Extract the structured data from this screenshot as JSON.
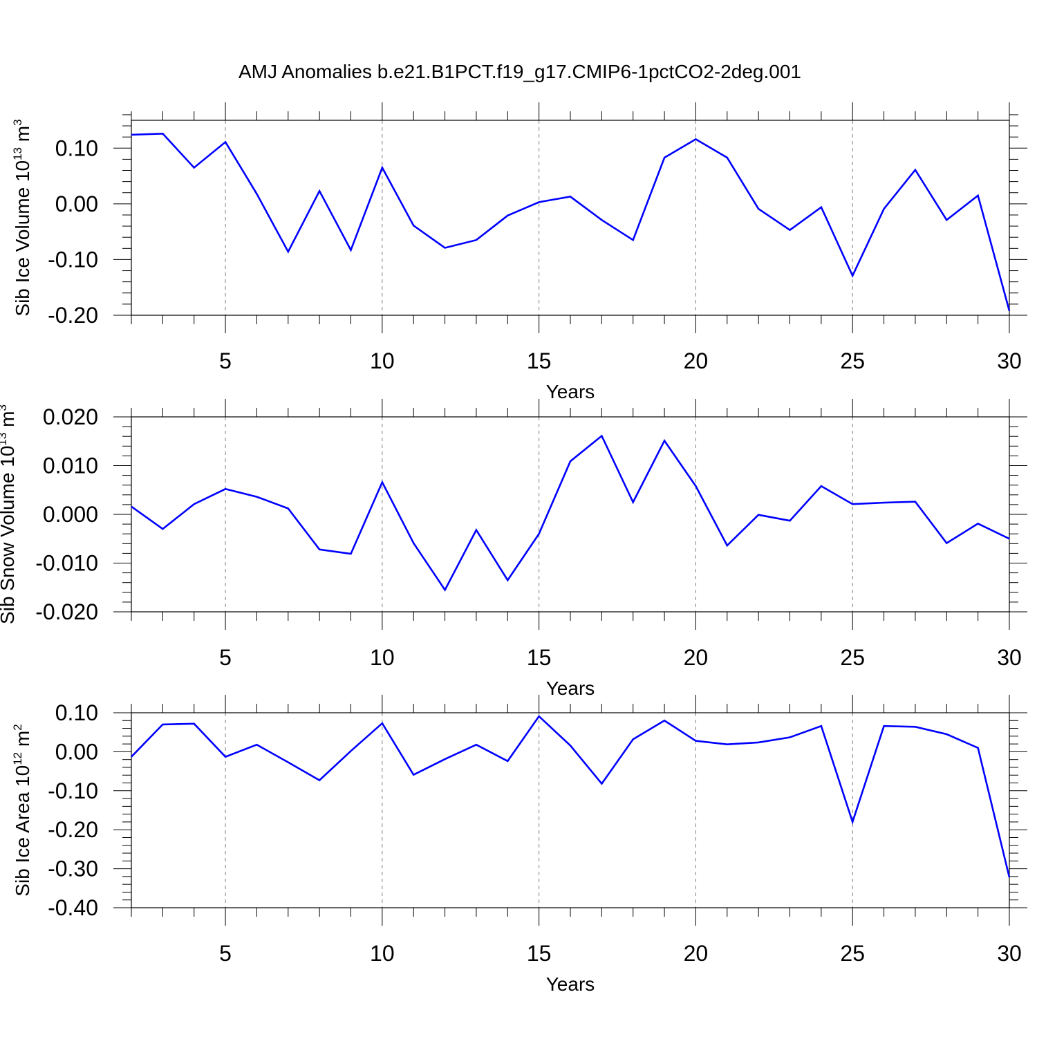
{
  "title": "AMJ Anomalies b.e21.B1PCT.f19_g17.CMIP6-1pctCO2-2deg.001",
  "colors": {
    "line": "#0000ff",
    "axis": "#000000",
    "grid": "#7f7f7f",
    "background": "#ffffff"
  },
  "chart_data": [
    {
      "type": "line",
      "ylabel": "Sib Ice Volume 10",
      "ylabel_exp": "13",
      "ylabel_unit": " m",
      "ylabel_unit_exp": "3",
      "xlabel": "Years",
      "xlim": [
        2,
        30
      ],
      "ylim": [
        -0.2,
        0.15
      ],
      "x_ticks": [
        5,
        10,
        15,
        20,
        25,
        30
      ],
      "x_tick_labels": [
        "5",
        "10",
        "15",
        "20",
        "25",
        "30"
      ],
      "y_ticks": [
        -0.2,
        -0.1,
        0.0,
        0.1
      ],
      "y_tick_labels": [
        "-0.20",
        "-0.10",
        "0.00",
        "0.10"
      ],
      "grid": "vertical dashed at x ticks",
      "x": [
        2,
        3,
        4,
        5,
        6,
        7,
        8,
        9,
        10,
        11,
        12,
        13,
        14,
        15,
        16,
        17,
        18,
        19,
        20,
        21,
        22,
        23,
        24,
        25,
        26,
        27,
        28,
        29,
        30
      ],
      "series": [
        {
          "values": [
            0.124,
            0.126,
            0.065,
            0.111,
            0.018,
            -0.086,
            0.023,
            -0.083,
            0.065,
            -0.039,
            -0.079,
            -0.065,
            -0.021,
            0.003,
            0.013,
            -0.029,
            -0.065,
            0.083,
            0.116,
            0.083,
            -0.009,
            -0.047,
            -0.006,
            -0.129,
            -0.009,
            0.061,
            -0.029,
            0.015,
            -0.192
          ]
        }
      ]
    },
    {
      "type": "line",
      "ylabel": "Sib Snow Volume 10",
      "ylabel_exp": "13",
      "ylabel_unit": " m",
      "ylabel_unit_exp": "3",
      "xlabel": "Years",
      "xlim": [
        2,
        30
      ],
      "ylim": [
        -0.02,
        0.02
      ],
      "x_ticks": [
        5,
        10,
        15,
        20,
        25,
        30
      ],
      "x_tick_labels": [
        "5",
        "10",
        "15",
        "20",
        "25",
        "30"
      ],
      "y_ticks": [
        -0.02,
        -0.01,
        0.0,
        0.01,
        0.02
      ],
      "y_tick_labels": [
        "-0.020",
        "-0.010",
        "0.000",
        "0.010",
        "0.020"
      ],
      "grid": "vertical dashed at x ticks",
      "x": [
        2,
        3,
        4,
        5,
        6,
        7,
        8,
        9,
        10,
        11,
        12,
        13,
        14,
        15,
        16,
        17,
        18,
        19,
        20,
        21,
        22,
        23,
        24,
        25,
        26,
        27,
        28,
        29,
        30
      ],
      "series": [
        {
          "values": [
            0.0016,
            -0.003,
            0.0021,
            0.0052,
            0.0036,
            0.0012,
            -0.0072,
            -0.0081,
            0.0066,
            -0.0059,
            -0.0155,
            -0.0032,
            -0.0135,
            -0.004,
            0.0109,
            0.0161,
            0.0025,
            0.0151,
            0.0058,
            -0.0064,
            -0.0001,
            -0.0013,
            0.0058,
            0.0021,
            0.0024,
            0.0026,
            -0.0059,
            -0.0019,
            -0.005
          ]
        }
      ]
    },
    {
      "type": "line",
      "ylabel": "Sib Ice Area 10",
      "ylabel_exp": "12",
      "ylabel_unit": " m",
      "ylabel_unit_exp": "2",
      "xlabel": "Years",
      "xlim": [
        2,
        30
      ],
      "ylim": [
        -0.4,
        0.1
      ],
      "x_ticks": [
        5,
        10,
        15,
        20,
        25,
        30
      ],
      "x_tick_labels": [
        "5",
        "10",
        "15",
        "20",
        "25",
        "30"
      ],
      "y_ticks": [
        -0.4,
        -0.3,
        -0.2,
        -0.1,
        0.0,
        0.1
      ],
      "y_tick_labels": [
        "-0.40",
        "-0.30",
        "-0.20",
        "-0.10",
        "0.00",
        "0.10"
      ],
      "grid": "vertical dashed at x ticks",
      "x": [
        2,
        3,
        4,
        5,
        6,
        7,
        8,
        9,
        10,
        11,
        12,
        13,
        14,
        15,
        16,
        17,
        18,
        19,
        20,
        21,
        22,
        23,
        24,
        25,
        26,
        27,
        28,
        29,
        30
      ],
      "series": [
        {
          "values": [
            -0.013,
            0.07,
            0.072,
            -0.013,
            0.018,
            -0.027,
            -0.073,
            0.002,
            0.073,
            -0.059,
            -0.019,
            0.018,
            -0.024,
            0.091,
            0.016,
            -0.082,
            0.032,
            0.08,
            0.028,
            0.019,
            0.024,
            0.037,
            0.066,
            -0.18,
            0.066,
            0.064,
            0.045,
            0.01,
            -0.322
          ]
        }
      ]
    }
  ]
}
